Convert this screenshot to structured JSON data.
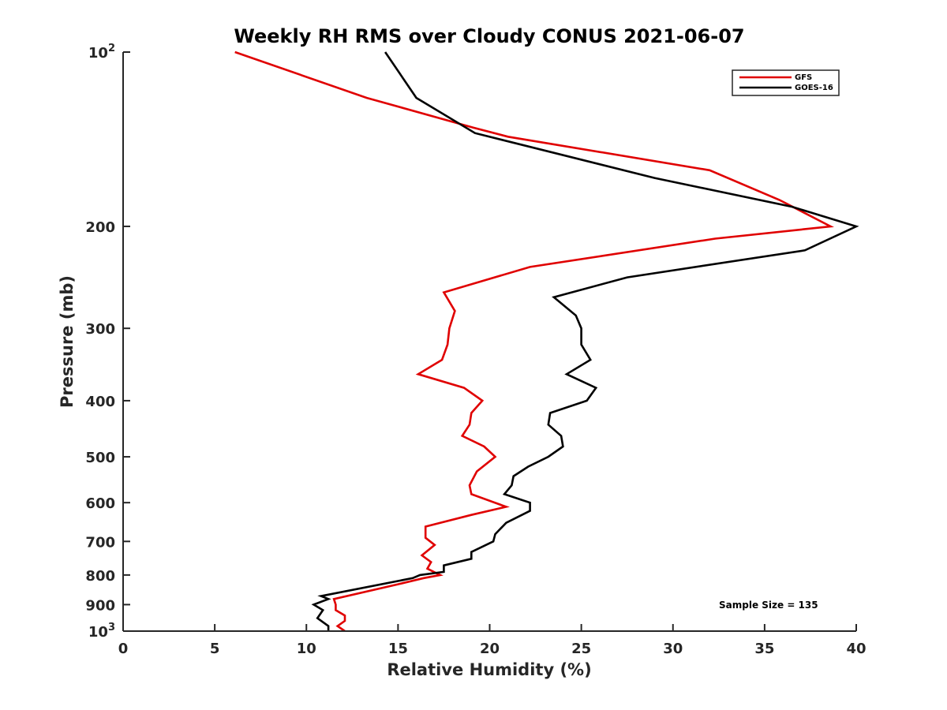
{
  "chart_data": {
    "type": "line",
    "title": "Weekly RH RMS over Cloudy CONUS 2021-06-07",
    "xlabel": "Relative Humidity (%)",
    "ylabel": "Pressure (mb)",
    "xlim": [
      0,
      40
    ],
    "ylim": [
      100,
      1000
    ],
    "y_scale": "log",
    "y_reversed": true,
    "grid": false,
    "legend_position": "top-right",
    "x_ticks": [
      0,
      5,
      10,
      15,
      20,
      25,
      30,
      35,
      40
    ],
    "y_ticks": [
      {
        "value": 100,
        "label": "10",
        "sup": "2"
      },
      {
        "value": 200,
        "label": "200",
        "sup": ""
      },
      {
        "value": 300,
        "label": "300",
        "sup": ""
      },
      {
        "value": 400,
        "label": "400",
        "sup": ""
      },
      {
        "value": 500,
        "label": "500",
        "sup": ""
      },
      {
        "value": 600,
        "label": "600",
        "sup": ""
      },
      {
        "value": 700,
        "label": "700",
        "sup": ""
      },
      {
        "value": 800,
        "label": "800",
        "sup": ""
      },
      {
        "value": 900,
        "label": "900",
        "sup": ""
      },
      {
        "value": 1000,
        "label": "10",
        "sup": "3"
      }
    ],
    "series": [
      {
        "name": "GFS",
        "color": "#e00000",
        "x": [
          6.1,
          13.3,
          19.1,
          21.0,
          32.0,
          35.8,
          38.6,
          32.3,
          22.2,
          17.5,
          18.1,
          17.8,
          17.7,
          17.4,
          16.1,
          18.6,
          19.6,
          19.0,
          18.9,
          18.5,
          19.7,
          20.3,
          19.3,
          18.9,
          19.0,
          20.9,
          19.0,
          16.5,
          16.5,
          17.0,
          16.3,
          16.8,
          16.6,
          17.3,
          16.4,
          15.0,
          11.5,
          11.6,
          11.6,
          12.1,
          12.1,
          11.7,
          12.1
        ],
        "y": [
          100,
          120,
          135,
          140,
          160,
          180,
          200,
          210,
          235,
          260,
          280,
          300,
          320,
          340,
          360,
          380,
          400,
          420,
          440,
          460,
          480,
          500,
          530,
          560,
          580,
          610,
          630,
          660,
          690,
          710,
          740,
          760,
          780,
          800,
          810,
          830,
          880,
          900,
          920,
          940,
          960,
          980,
          1000
        ]
      },
      {
        "name": "GOES-16",
        "color": "#000000",
        "x": [
          14.3,
          16.0,
          19.2,
          29.0,
          36.5,
          40.0,
          37.2,
          27.5,
          23.5,
          24.7,
          25.0,
          25.0,
          25.5,
          24.2,
          25.8,
          25.3,
          23.3,
          23.2,
          23.9,
          24.0,
          23.2,
          22.1,
          21.3,
          21.2,
          20.8,
          22.2,
          22.2,
          20.9,
          20.3,
          20.2,
          19.0,
          19.0,
          17.5,
          17.5,
          16.2,
          15.8,
          10.8,
          11.2,
          10.4,
          10.9,
          10.6,
          11.2,
          11.2
        ],
        "y": [
          100,
          120,
          138,
          165,
          185,
          200,
          220,
          245,
          265,
          285,
          300,
          320,
          340,
          360,
          380,
          400,
          420,
          440,
          460,
          480,
          500,
          520,
          540,
          560,
          580,
          600,
          620,
          650,
          680,
          700,
          730,
          750,
          770,
          790,
          800,
          810,
          870,
          880,
          900,
          920,
          950,
          980,
          1000
        ]
      }
    ],
    "annotations": [
      {
        "text": "Sample Size = 135"
      }
    ]
  }
}
